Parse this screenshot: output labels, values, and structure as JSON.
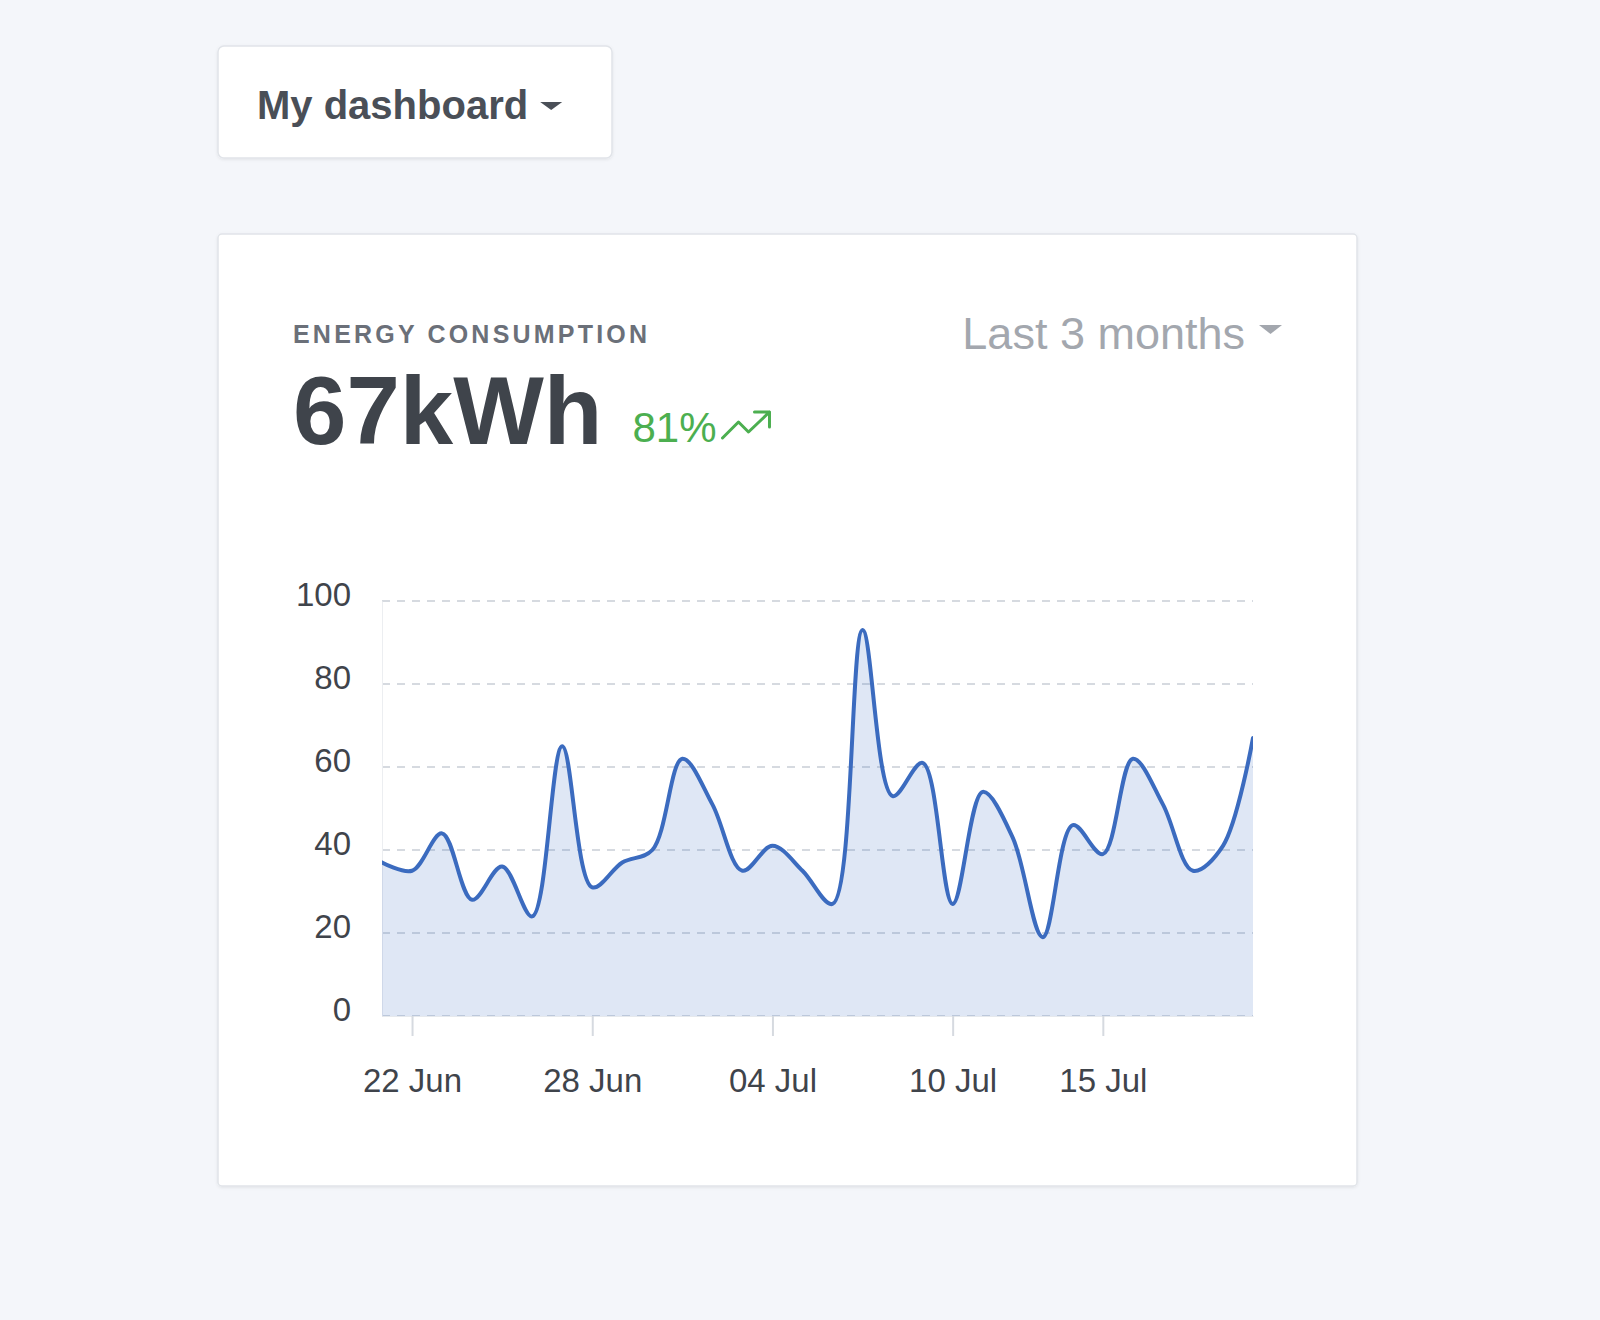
{
  "dashboard": {
    "title": "My dashboard"
  },
  "chart_data": {
    "type": "area",
    "title": "ENERGY CONSUMPTION",
    "annotations": [
      "67kWh",
      "81%"
    ],
    "period": "Last 3 months",
    "categories": [
      null,
      "22 Jun",
      null,
      null,
      null,
      null,
      null,
      "28 Jun",
      null,
      null,
      null,
      null,
      null,
      "04 Jul",
      null,
      null,
      null,
      null,
      null,
      "10 Jul",
      null,
      null,
      null,
      null,
      "15 Jul",
      null,
      null,
      null,
      null,
      null
    ],
    "values": [
      37,
      35,
      44,
      28,
      36,
      24,
      65,
      31,
      37,
      40,
      62,
      51,
      35,
      41,
      35,
      27,
      93,
      53,
      61,
      27,
      54,
      43,
      19,
      46,
      39,
      62,
      51,
      35,
      41,
      67
    ],
    "color": "#3b6bbf",
    "ylim": [
      0,
      100
    ],
    "yticks": [
      0,
      20,
      40,
      60,
      80,
      100
    ],
    "grid": true
  }
}
